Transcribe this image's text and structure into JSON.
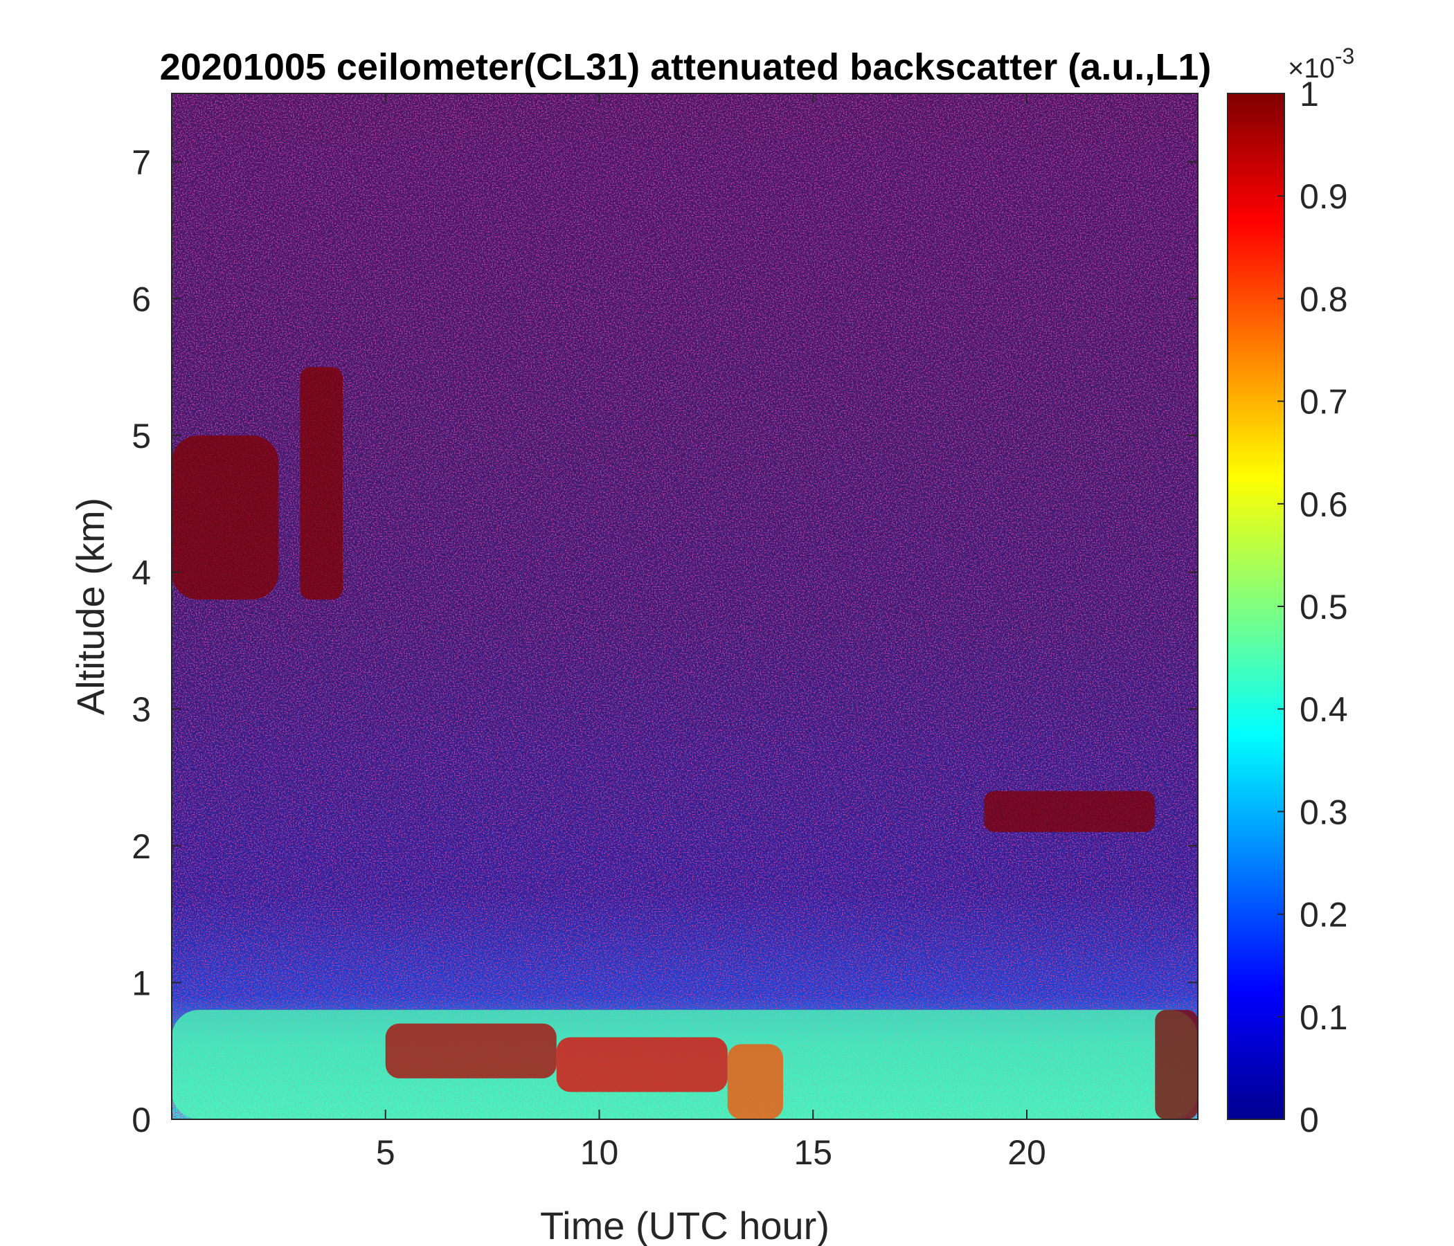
{
  "chart_data": {
    "type": "heatmap",
    "title": "20201005 ceilometer(CL31) attenuated backscatter (a.u.,L1)",
    "xlabel": "Time (UTC hour)",
    "ylabel": "Altitude (km)",
    "xlim": [
      0,
      24
    ],
    "ylim": [
      0,
      7.5
    ],
    "xticks": [
      5,
      10,
      15,
      20
    ],
    "yticks": [
      0,
      1,
      2,
      3,
      4,
      5,
      6,
      7
    ],
    "colorbar": {
      "colormap": "jet",
      "range": [
        0,
        1
      ],
      "ticks": [
        0,
        0.1,
        0.2,
        0.3,
        0.4,
        0.5,
        0.6,
        0.7,
        0.8,
        0.9,
        1
      ],
      "tick_labels": [
        "0",
        "0.1",
        "0.2",
        "0.3",
        "0.4",
        "0.5",
        "0.6",
        "0.7",
        "0.8",
        "0.9",
        "1"
      ],
      "scale_label": "×10",
      "scale_exponent": "-3"
    },
    "features": [
      {
        "x": [
          0,
          24
        ],
        "y": [
          0,
          0.8
        ],
        "value": 0.45
      },
      {
        "x": [
          5,
          9
        ],
        "y": [
          0.3,
          0.7
        ],
        "value": 0.95
      },
      {
        "x": [
          9,
          13
        ],
        "y": [
          0.2,
          0.6
        ],
        "value": 0.9
      },
      {
        "x": [
          13,
          14.3
        ],
        "y": [
          0.0,
          0.55
        ],
        "value": 0.8
      },
      {
        "x": [
          23,
          24
        ],
        "y": [
          0.0,
          0.8
        ],
        "value": 1.0
      },
      {
        "x": [
          19,
          23
        ],
        "y": [
          2.1,
          2.4
        ],
        "value": 1.0
      },
      {
        "x": [
          3,
          4
        ],
        "y": [
          3.8,
          5.5
        ],
        "value": 1.0
      },
      {
        "x": [
          0,
          2.5
        ],
        "y": [
          3.8,
          5.0
        ],
        "value": 1.0
      }
    ]
  }
}
